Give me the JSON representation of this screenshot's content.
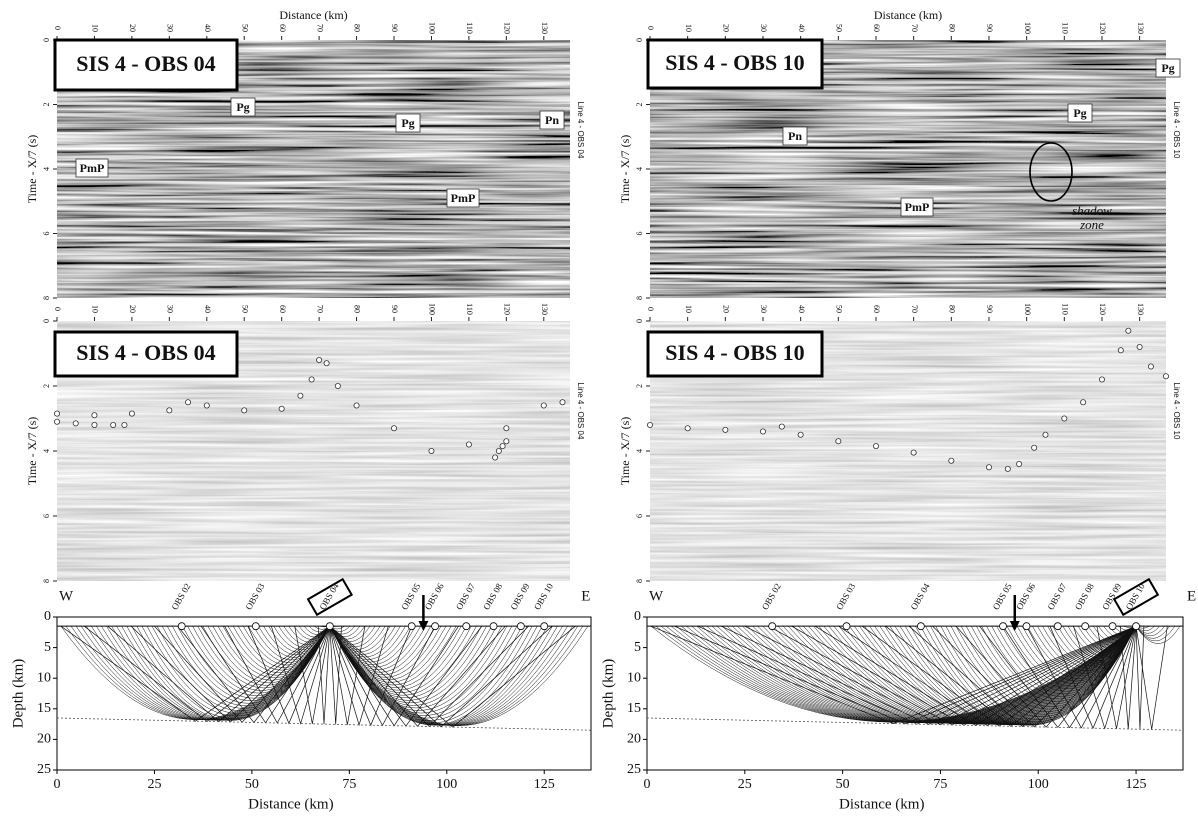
{
  "sections": [
    {
      "title": "SIS 4 - OBS 04",
      "x_label": "Distance (km)",
      "y_label": "Time - X/7 (s)",
      "side_label": "Line 4 - OBS 04",
      "background": "dark",
      "xlim": [
        0,
        137
      ],
      "ylim": [
        0,
        8
      ],
      "xticks": [
        0,
        10,
        20,
        30,
        40,
        50,
        60,
        70,
        80,
        90,
        100,
        110,
        120,
        130
      ],
      "yticks": [
        0,
        2,
        4,
        6,
        8
      ],
      "annotations": [
        "Pg",
        "Pg",
        "Pn",
        "PmP",
        "PmP"
      ]
    },
    {
      "title": "SIS 4 - OBS 10",
      "x_label": "Distance (km)",
      "y_label": "Time - X/7 (s)",
      "side_label": "Line 4 - OBS 10",
      "background": "dark",
      "xlim": [
        0,
        137
      ],
      "ylim": [
        0,
        8
      ],
      "xticks": [
        0,
        10,
        20,
        30,
        40,
        50,
        60,
        70,
        80,
        90,
        100,
        110,
        120,
        130
      ],
      "yticks": [
        0,
        2,
        4,
        6,
        8
      ],
      "annotations": [
        "Pn",
        "Pg",
        "Pg",
        "PmP",
        "shadow zone"
      ]
    },
    {
      "title": "SIS 4 - OBS 04",
      "y_label": "Time - X/7 (s)",
      "side_label": "Line 4 - OBS 04",
      "background": "light",
      "xlim": [
        0,
        137
      ],
      "ylim": [
        0,
        8
      ],
      "xticks": [
        0,
        10,
        20,
        30,
        40,
        50,
        60,
        70,
        80,
        90,
        100,
        110,
        120,
        130
      ],
      "yticks": [
        0,
        2,
        4,
        6,
        8
      ],
      "pick_groups": [
        {
          "x": [
            0,
            10,
            20,
            30,
            35,
            40,
            50,
            60,
            65,
            68,
            70,
            72,
            75,
            80,
            90,
            100,
            110,
            120,
            130,
            135
          ],
          "t": [
            2.85,
            2.9,
            2.85,
            2.75,
            2.5,
            2.6,
            2.75,
            2.7,
            2.3,
            1.8,
            1.2,
            1.3,
            2.0,
            2.6,
            3.3,
            4.0,
            3.8,
            3.3,
            2.6,
            2.5
          ]
        },
        {
          "x": [
            0,
            5,
            10,
            15,
            18
          ],
          "t": [
            3.1,
            3.15,
            3.2,
            3.2,
            3.2
          ]
        },
        {
          "x": [
            117,
            118,
            119,
            120
          ],
          "t": [
            4.2,
            4.0,
            3.85,
            3.7
          ]
        }
      ]
    },
    {
      "title": "SIS 4 - OBS 10",
      "y_label": "Time - X/7 (s)",
      "side_label": "Line 4 - OBS 10",
      "background": "light",
      "xlim": [
        0,
        137
      ],
      "ylim": [
        0,
        8
      ],
      "xticks": [
        0,
        10,
        20,
        30,
        40,
        50,
        60,
        70,
        80,
        90,
        100,
        110,
        120,
        130
      ],
      "yticks": [
        0,
        2,
        4,
        6,
        8
      ],
      "pick_groups": [
        {
          "x": [
            0,
            10,
            20,
            30,
            35,
            40,
            50,
            60,
            70,
            80,
            90,
            95,
            98,
            102,
            105,
            110,
            115,
            120,
            125,
            127,
            130,
            133,
            137
          ],
          "t": [
            3.2,
            3.3,
            3.35,
            3.4,
            3.25,
            3.5,
            3.7,
            3.85,
            4.05,
            4.3,
            4.5,
            4.55,
            4.4,
            3.9,
            3.5,
            3.0,
            2.5,
            1.8,
            0.9,
            0.3,
            0.8,
            1.4,
            1.7
          ]
        }
      ]
    }
  ],
  "ray_diagrams": [
    {
      "west": "W",
      "east": "E",
      "y_label": "Depth (km)",
      "x_label": "Distance (km)",
      "xlim": [
        0,
        137
      ],
      "ylim": [
        0,
        25
      ],
      "xticks": [
        0,
        25,
        50,
        75,
        100,
        125
      ],
      "yticks": [
        0,
        5,
        10,
        15,
        20,
        25
      ],
      "obs_labels": [
        "OBS 02",
        "OBS 03",
        "OBS 04",
        "OBS 05",
        "OBS 06",
        "OBS 07",
        "OBS 08",
        "OBS 09",
        "OBS 10"
      ],
      "obs_positions": [
        32,
        51,
        70,
        91,
        97,
        105,
        112,
        119,
        125
      ],
      "active": 2,
      "moho": {
        "x": [
          0,
          137
        ],
        "depth": [
          16.5,
          18.5
        ]
      }
    },
    {
      "west": "W",
      "east": "E",
      "y_label": "Depth (km)",
      "x_label": "Distance (km)",
      "xlim": [
        0,
        137
      ],
      "ylim": [
        0,
        25
      ],
      "xticks": [
        0,
        25,
        50,
        75,
        100,
        125
      ],
      "yticks": [
        0,
        5,
        10,
        15,
        20,
        25
      ],
      "obs_labels": [
        "OBS 02",
        "OBS 03",
        "OBS 04",
        "OBS 05",
        "OBS 06",
        "OBS 07",
        "OBS 08",
        "OBS 09",
        "OBS 10"
      ],
      "obs_positions": [
        32,
        51,
        70,
        91,
        97,
        105,
        112,
        119,
        125
      ],
      "active": 8,
      "moho": {
        "x": [
          0,
          137
        ],
        "depth": [
          16.5,
          18.5
        ]
      }
    }
  ]
}
